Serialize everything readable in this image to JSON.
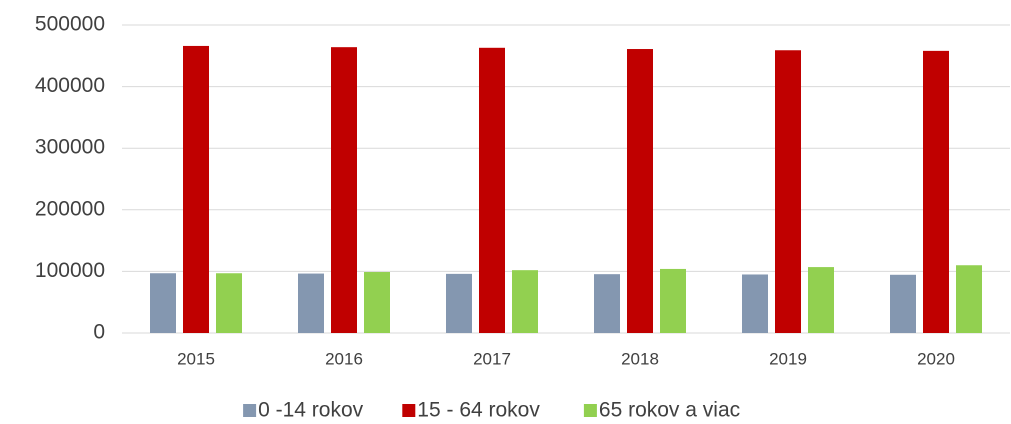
{
  "chart_data": {
    "type": "bar",
    "categories": [
      "2015",
      "2016",
      "2017",
      "2018",
      "2019",
      "2020"
    ],
    "series": [
      {
        "name": "0 -14 rokov",
        "color": "#8497b0",
        "values": [
          97000,
          96500,
          96000,
          95500,
          95000,
          94500
        ]
      },
      {
        "name": "15 - 64 rokov",
        "color": "#c00000",
        "values": [
          466000,
          464000,
          463000,
          461000,
          459000,
          458000
        ]
      },
      {
        "name": "65 rokov a viac",
        "color": "#92d050",
        "values": [
          97000,
          99000,
          102000,
          104000,
          107000,
          110000
        ]
      }
    ],
    "ylim": [
      0,
      500000
    ],
    "yticks": [
      0,
      100000,
      200000,
      300000,
      400000,
      500000
    ],
    "grid": true,
    "legend": "bottom"
  }
}
